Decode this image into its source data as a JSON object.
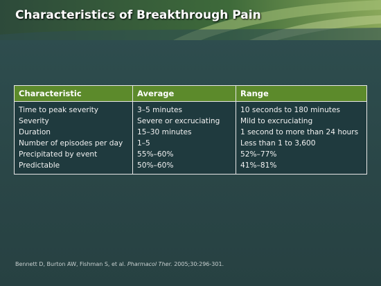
{
  "header": {
    "title": "Characteristics of Breakthrough Pain"
  },
  "table": {
    "columns": [
      "Characteristic",
      "Average",
      "Range"
    ],
    "rows": [
      [
        "Time to peak severity",
        "3–5 minutes",
        "10 seconds to 180 minutes"
      ],
      [
        "Severity",
        "Severe or excruciating",
        "Mild to excruciating"
      ],
      [
        "Duration",
        "15–30 minutes",
        "1 second to more than 24 hours"
      ],
      [
        "Number of episodes per day",
        "1–5",
        "Less than 1 to 3,600"
      ],
      [
        "Precipitated by event",
        "55%–60%",
        "52%–77%"
      ],
      [
        "Predictable",
        "50%–60%",
        "41%–81%"
      ]
    ]
  },
  "footer": {
    "citation": [
      "Bennett D, Burton AW, Fishman S, et al. ",
      "Pharmacol Ther.",
      " 2005;30:296-301."
    ]
  }
}
